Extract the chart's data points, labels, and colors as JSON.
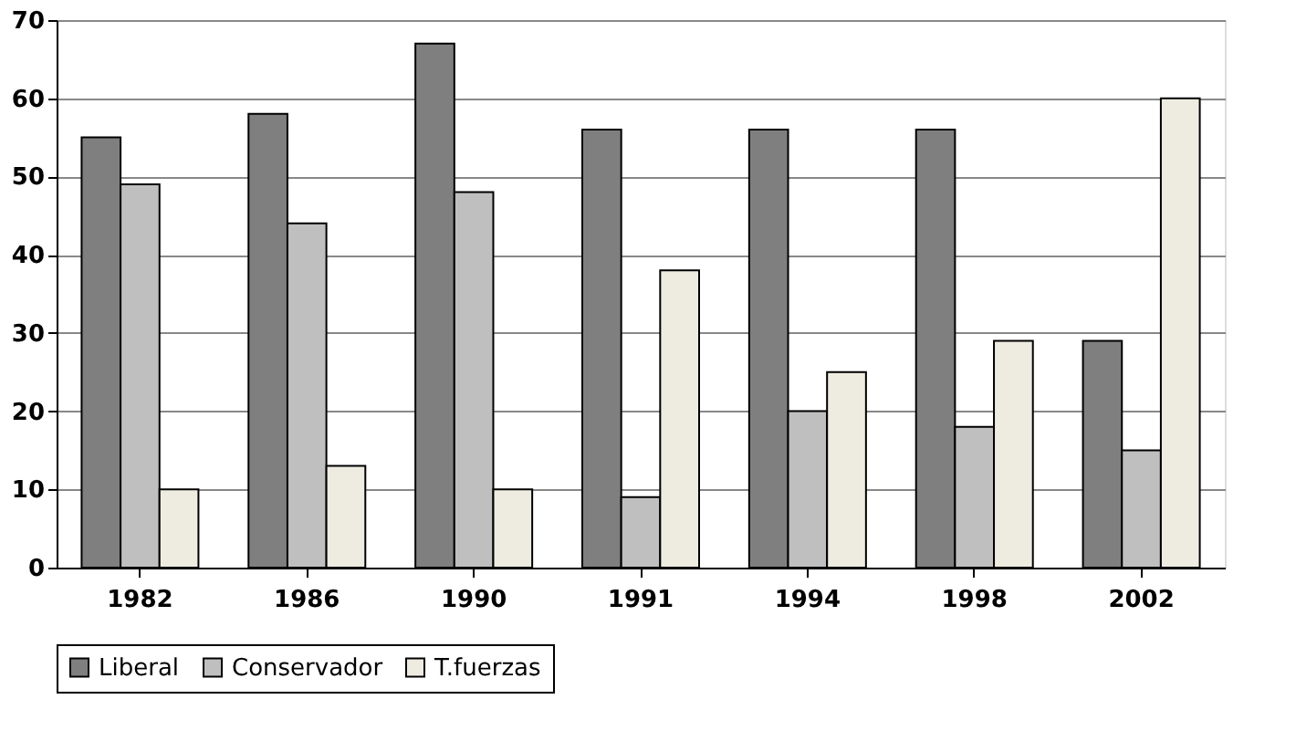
{
  "chart_data": {
    "type": "bar",
    "categories": [
      "1982",
      "1986",
      "1990",
      "1991",
      "1994",
      "1998",
      "2002"
    ],
    "series": [
      {
        "name": "Liberal",
        "color": "#7f7f7f",
        "values": [
          55,
          58,
          67,
          56,
          56,
          56,
          29
        ]
      },
      {
        "name": "Conservador",
        "color": "#bfbfbf",
        "values": [
          49,
          44,
          48,
          9,
          20,
          18,
          15
        ]
      },
      {
        "name": "T.fuerzas",
        "color": "#eeece1",
        "values": [
          10,
          13,
          10,
          38,
          25,
          29,
          60
        ]
      }
    ],
    "ylim": [
      0,
      70
    ],
    "yticks": [
      0,
      10,
      20,
      30,
      40,
      50,
      60,
      70
    ],
    "grid": "y",
    "legend": "bottom"
  }
}
